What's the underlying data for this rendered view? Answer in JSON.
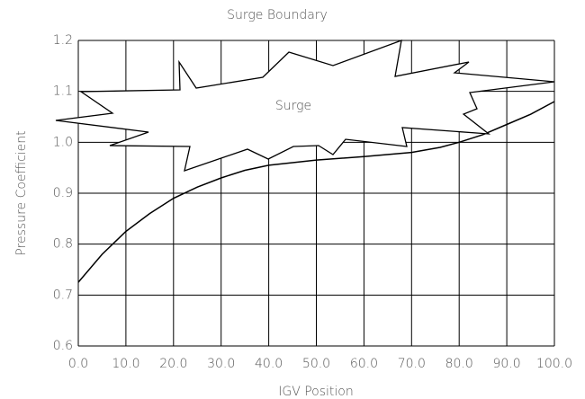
{
  "chart_data": {
    "type": "line",
    "title": "Surge Boundary",
    "x_label": "IGV Position",
    "y_label": "Pressure Coefficient",
    "annotation": "Surge",
    "x": [
      0,
      5,
      10,
      15,
      20,
      25,
      30,
      35,
      40,
      50,
      60,
      70,
      76,
      80,
      85,
      90,
      95,
      100
    ],
    "series": [
      {
        "name": "Surge Boundary",
        "color": "#000000",
        "values": [
          0.725,
          0.78,
          0.825,
          0.86,
          0.89,
          0.912,
          0.93,
          0.945,
          0.955,
          0.965,
          0.972,
          0.98,
          0.99,
          1.0,
          1.015,
          1.035,
          1.055,
          1.08
        ]
      }
    ],
    "xlim": [
      0,
      100
    ],
    "xticks": [
      {
        "value": 0,
        "label": "0.0"
      },
      {
        "value": 10,
        "label": "10.0"
      },
      {
        "value": 20,
        "label": "20.0"
      },
      {
        "value": 30,
        "label": "30.0"
      },
      {
        "value": 40,
        "label": "40.0"
      },
      {
        "value": 50,
        "label": "50.0"
      },
      {
        "value": 60,
        "label": "60.0"
      },
      {
        "value": 70,
        "label": "70.0"
      },
      {
        "value": 80,
        "label": "80.0"
      },
      {
        "value": 90,
        "label": "90.0"
      },
      {
        "value": 100,
        "label": "100.0"
      }
    ],
    "ylim": [
      0.6,
      1.2
    ],
    "yticks": [
      0.6,
      0.7,
      0.8,
      0.9,
      {
        "value": 1,
        "label": "1.0"
      },
      1.1,
      1.2
    ],
    "grid": true
  }
}
